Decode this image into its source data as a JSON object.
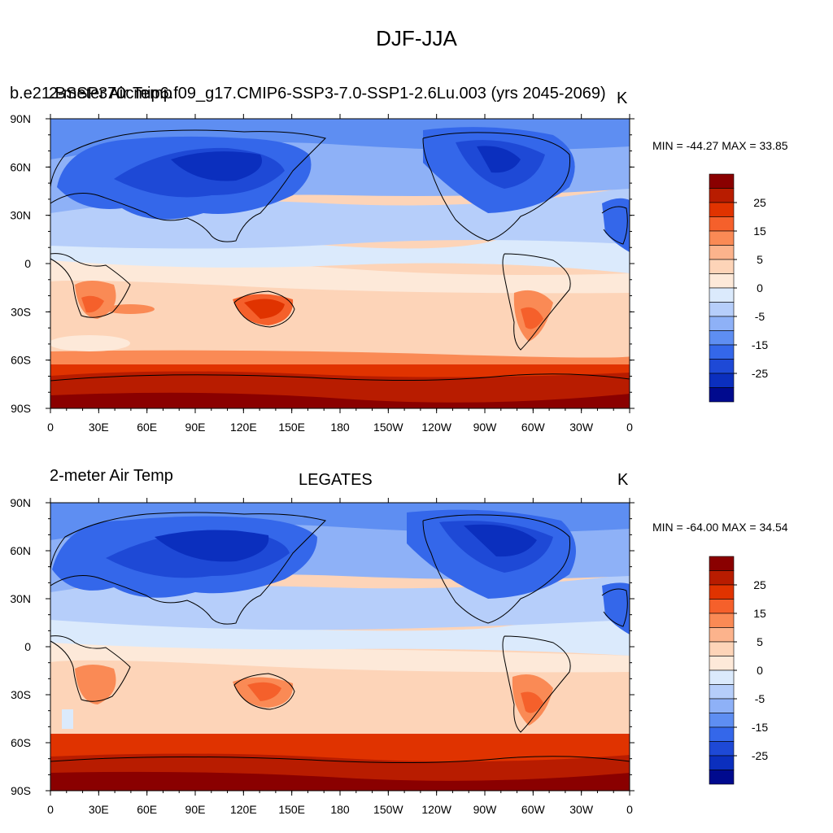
{
  "title": "DJF-JJA",
  "panels": [
    {
      "id": "top",
      "left_title": "2-meter Air Temp",
      "center_title": "b.e21.BSSP370cmip6.f09_g17.CMIP6-SSP3-7.0-SSP1-2.6Lu.003 (yrs 2045-2069)",
      "units": "K",
      "stats": "MIN = -44.27 MAX =  33.85"
    },
    {
      "id": "bottom",
      "left_title": "2-meter Air Temp",
      "center_title": "LEGATES",
      "units": "K",
      "stats": "MIN = -64.00 MAX =  34.54"
    }
  ],
  "lon_labels": [
    "0",
    "30E",
    "60E",
    "90E",
    "120E",
    "150E",
    "180",
    "150W",
    "120W",
    "90W",
    "60W",
    "30W",
    "0"
  ],
  "lat_labels": [
    "90N",
    "60N",
    "30N",
    "0",
    "30S",
    "60S",
    "90S"
  ],
  "colorbar": {
    "labels": [
      "25",
      "15",
      "5",
      "0",
      "-5",
      "-15",
      "-25"
    ],
    "colors": [
      "#8a0000",
      "#b81c00",
      "#e03300",
      "#f5602b",
      "#fa8a55",
      "#fcb38c",
      "#fdd4b8",
      "#fde9d9",
      "#dbeafc",
      "#b6cefa",
      "#8eb1f7",
      "#5e8ef2",
      "#3467ea",
      "#1e49d6",
      "#0b2fbe",
      "#000a8e"
    ]
  },
  "map_legend_colors": {
    "very_cold": "#0b2fbe",
    "cold": "#3467ea",
    "cool": "#8eb1f7",
    "mild_cool": "#dbeafc",
    "mild_warm": "#fde9d9",
    "warm": "#fcb38c",
    "hot": "#e03300",
    "very_hot": "#b81c00",
    "coastline": "#000000"
  }
}
